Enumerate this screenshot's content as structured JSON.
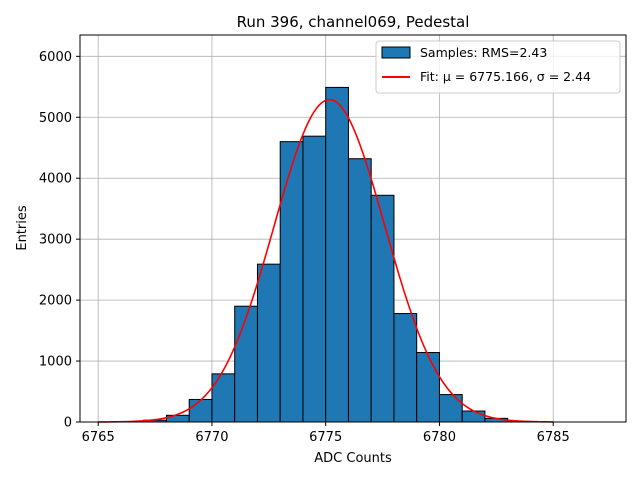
{
  "chart_data": {
    "type": "bar",
    "title": "Run 396, channel069, Pedestal",
    "xlabel": "ADC Counts",
    "ylabel": "Entries",
    "xlim": [
      6764.2,
      6788.2
    ],
    "ylim": [
      0,
      6350
    ],
    "xticks": [
      6765,
      6770,
      6775,
      6780,
      6785
    ],
    "yticks": [
      0,
      1000,
      2000,
      3000,
      4000,
      5000,
      6000
    ],
    "grid": true,
    "legend_position": "top-right",
    "bin_width": 1,
    "bins": [
      {
        "x": 6766,
        "value": 5
      },
      {
        "x": 6767,
        "value": 30
      },
      {
        "x": 6768,
        "value": 110
      },
      {
        "x": 6769,
        "value": 370
      },
      {
        "x": 6770,
        "value": 790
      },
      {
        "x": 6771,
        "value": 1900
      },
      {
        "x": 6772,
        "value": 2590
      },
      {
        "x": 6773,
        "value": 4600
      },
      {
        "x": 6774,
        "value": 4690
      },
      {
        "x": 6775,
        "value": 5490
      },
      {
        "x": 6776,
        "value": 4320
      },
      {
        "x": 6777,
        "value": 3720
      },
      {
        "x": 6778,
        "value": 1780
      },
      {
        "x": 6779,
        "value": 1140
      },
      {
        "x": 6780,
        "value": 450
      },
      {
        "x": 6781,
        "value": 180
      },
      {
        "x": 6782,
        "value": 60
      },
      {
        "x": 6783,
        "value": 10
      }
    ],
    "fit": {
      "mu": 6775.166,
      "sigma": 2.44,
      "amplitude": 5290,
      "x_range": [
        6765,
        6785
      ]
    },
    "series": [
      {
        "name": "Samples: RMS=2.43",
        "type": "histogram",
        "color": "#1f77b4"
      },
      {
        "name": "Fit: μ = 6775.166, σ = 2.44",
        "type": "line",
        "color": "#ff0000"
      }
    ]
  }
}
